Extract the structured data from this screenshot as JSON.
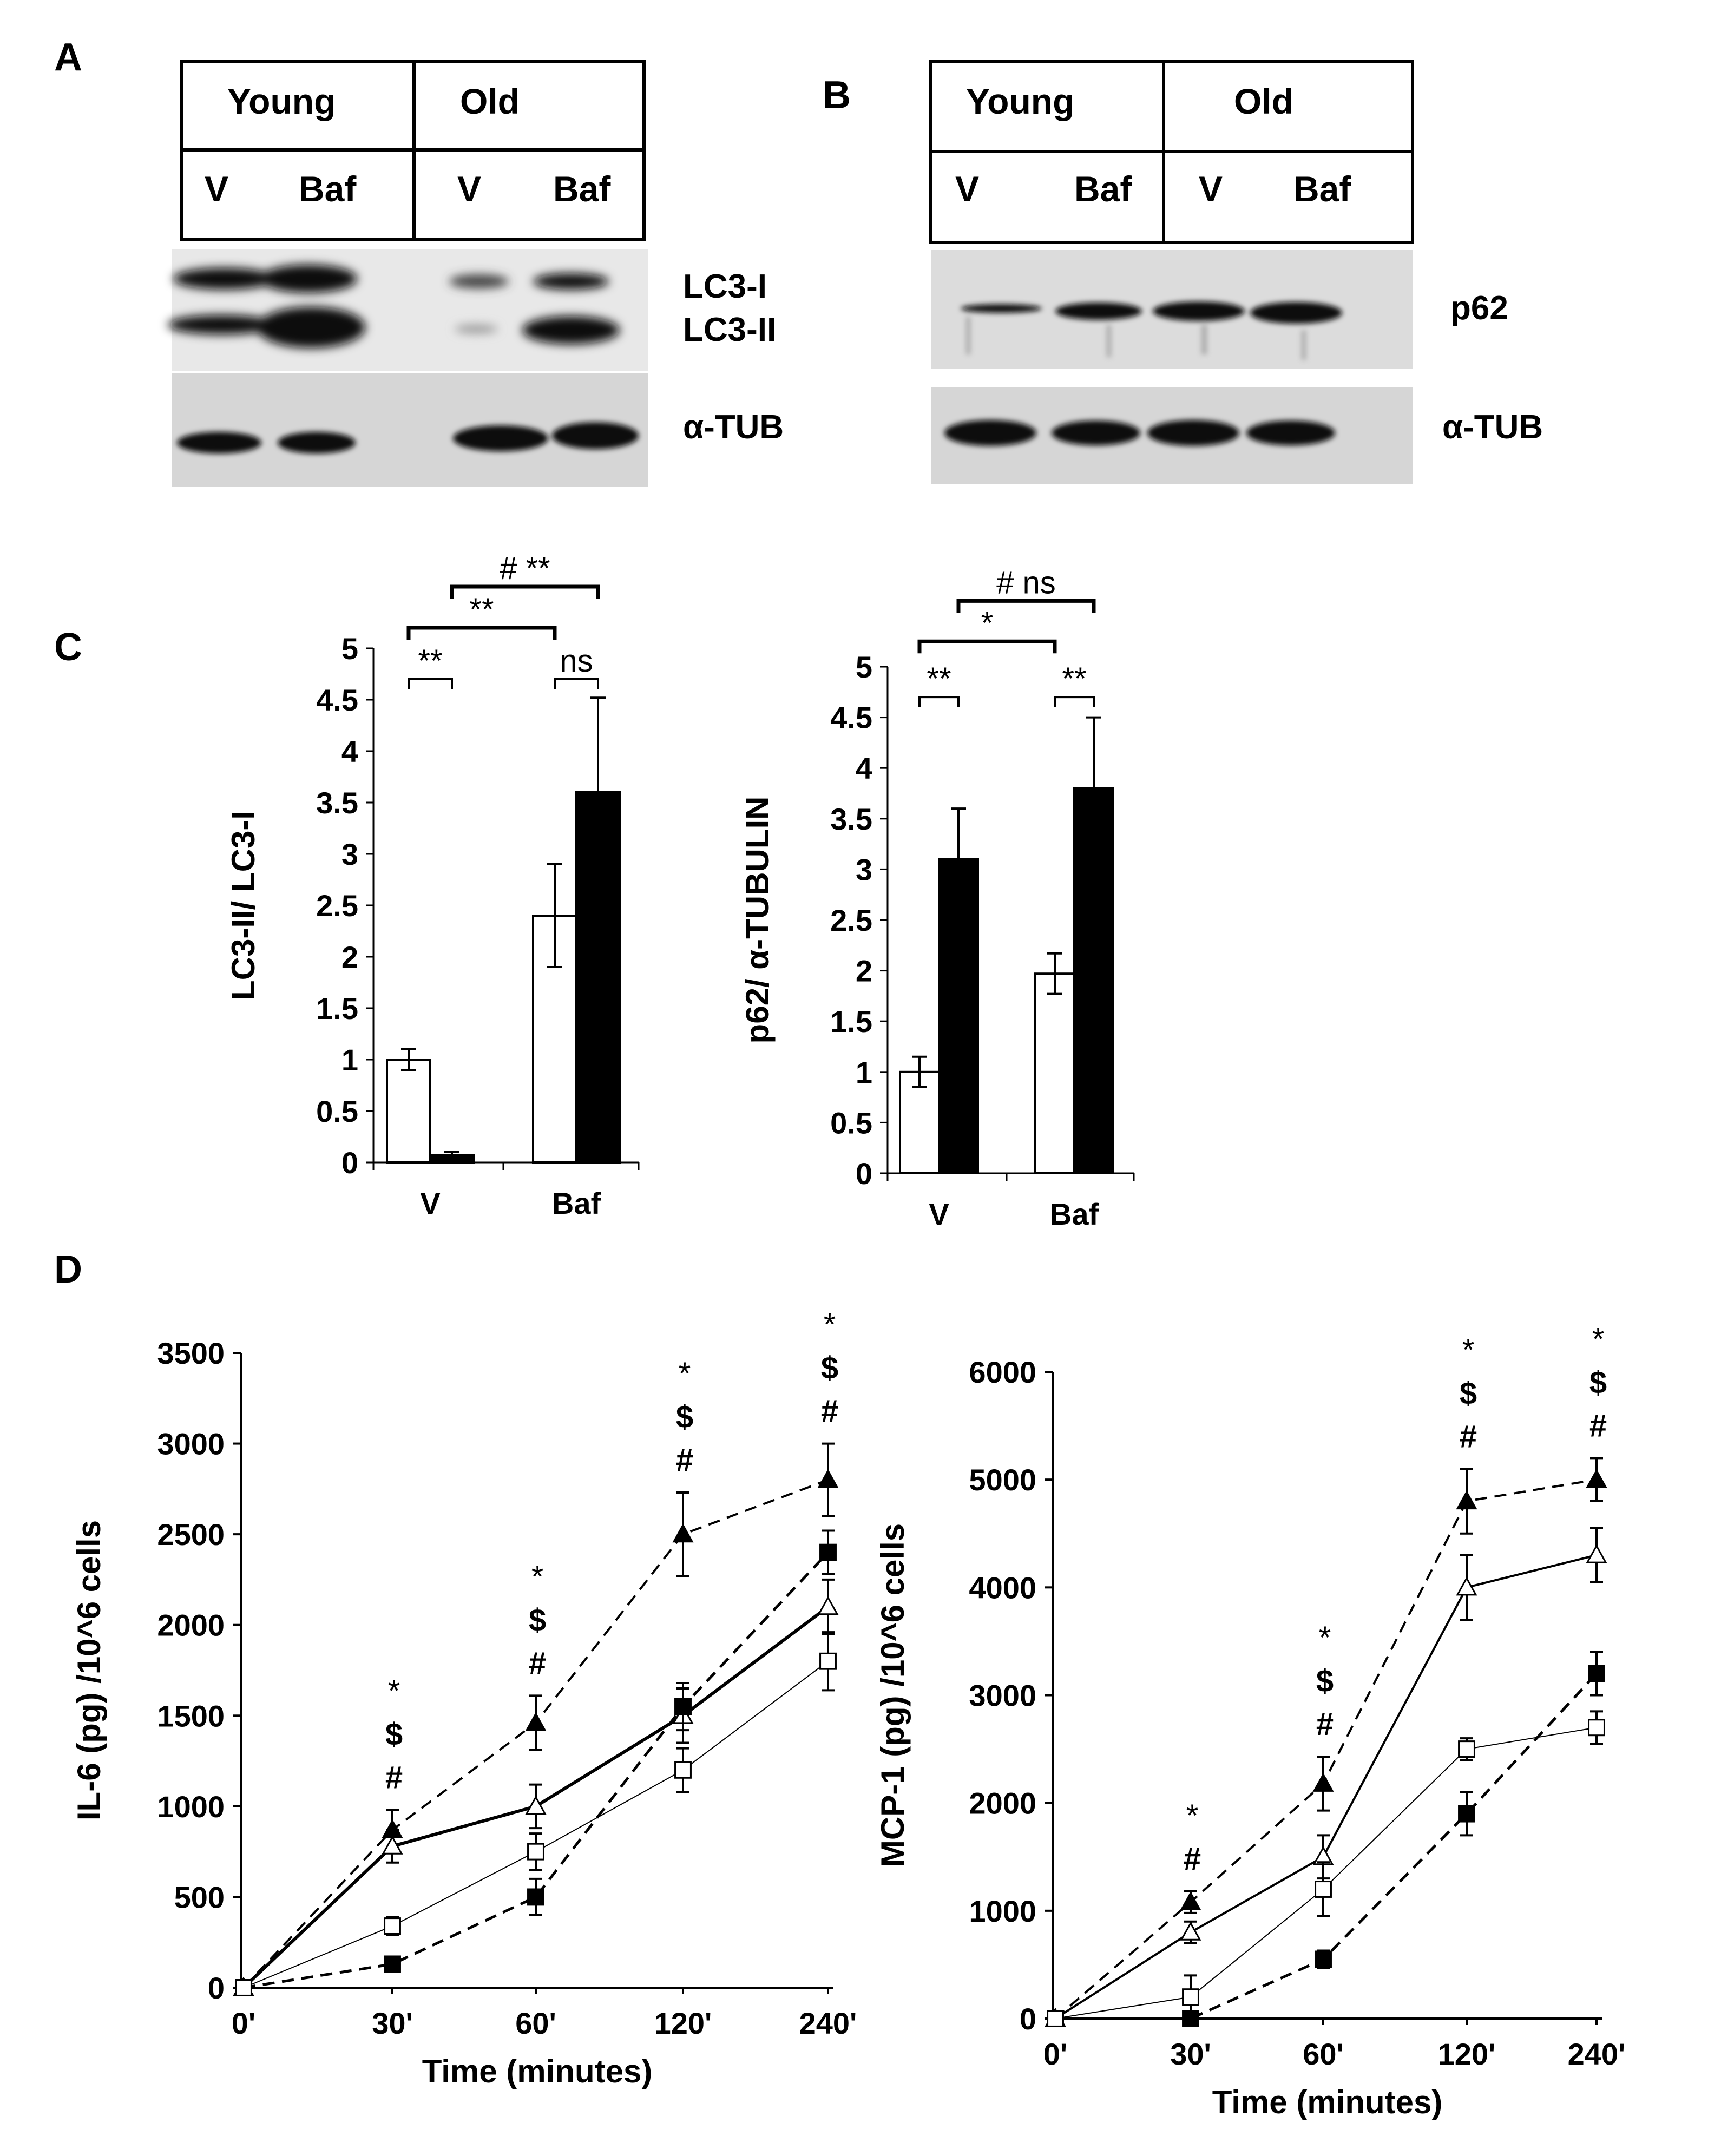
{
  "panels": {
    "A": {
      "letter": "A",
      "groups": [
        "Young",
        "Old"
      ],
      "lanes": [
        "V",
        "Baf",
        "V",
        "Baf"
      ],
      "blot_labels": [
        "LC3-I",
        "LC3-II",
        "α-TUB"
      ]
    },
    "B": {
      "letter": "B",
      "groups": [
        "Young",
        "Old"
      ],
      "lanes": [
        "V",
        "Baf",
        "V",
        "Baf"
      ],
      "blot_labels": [
        "p62",
        "α-TUB"
      ]
    },
    "C": {
      "letter": "C"
    },
    "D": {
      "letter": "D"
    }
  },
  "colors": {
    "young": "#ffffff",
    "old": "#000000",
    "outline": "#000000",
    "blot_bg": "#d9d9d9",
    "band": "#151515"
  },
  "chart_data": [
    {
      "id": "C-left",
      "type": "bar",
      "categories": [
        "V",
        "Baf"
      ],
      "ylabel": "LC3-II/ LC3-I",
      "ylim": [
        0,
        5
      ],
      "yticks": [
        "0",
        "0.5",
        "1",
        "1.5",
        "2",
        "2.5",
        "3",
        "3.5",
        "4",
        "4.5",
        "5"
      ],
      "series": [
        {
          "values": [
            1.0,
            2.4
          ],
          "errors": [
            0.1,
            0.5
          ],
          "fill": "#ffffff"
        },
        {
          "values": [
            0.07,
            3.6
          ],
          "errors": [
            0.03,
            0.92
          ],
          "fill": "#000000"
        }
      ],
      "brackets": [
        {
          "label": "**",
          "from": "V-young",
          "to": "V-old",
          "level": 4.7
        },
        {
          "label": "ns",
          "from": "Baf-young",
          "to": "Baf-old",
          "level": 4.7
        },
        {
          "label": "**",
          "from": "V-young",
          "to": "Baf-young",
          "level": 5.2
        },
        {
          "label": "# **",
          "from": "V-old",
          "to": "Baf-old",
          "level": 5.6
        }
      ]
    },
    {
      "id": "C-right",
      "type": "bar",
      "categories": [
        "V",
        "Baf"
      ],
      "ylabel": "p62/ α-TUBULIN",
      "ylim": [
        0,
        5
      ],
      "yticks": [
        "0",
        "0.5",
        "1",
        "1.5",
        "2",
        "2.5",
        "3",
        "3.5",
        "4",
        "4.5",
        "5"
      ],
      "series": [
        {
          "values": [
            1.0,
            1.97
          ],
          "errors": [
            0.15,
            0.2
          ],
          "fill": "#ffffff"
        },
        {
          "values": [
            3.1,
            3.8
          ],
          "errors": [
            0.5,
            0.7
          ],
          "fill": "#000000"
        }
      ],
      "brackets": [
        {
          "label": "**",
          "from": "V-young",
          "to": "V-old",
          "level": 4.7
        },
        {
          "label": "**",
          "from": "Baf-young",
          "to": "Baf-old",
          "level": 4.7
        },
        {
          "label": "*",
          "from": "V-young",
          "to": "Baf-young",
          "level": 5.25
        },
        {
          "label": "# ns",
          "from": "V-old",
          "to": "Baf-old",
          "level": 5.65
        }
      ]
    },
    {
      "id": "D-left",
      "type": "line",
      "x": [
        "0'",
        "30'",
        "60'",
        "120'",
        "240'"
      ],
      "xlabel": "Time (minutes)",
      "ylabel": "IL-6 (pg) /10^6 cells",
      "ylim": [
        0,
        3500
      ],
      "yticks": [
        "0",
        "500",
        "1000",
        "1500",
        "2000",
        "2500",
        "3000",
        "3500"
      ],
      "series": [
        {
          "marker": "filled-triangle",
          "dash": true,
          "stroke": 4,
          "values": [
            0,
            870,
            1460,
            2500,
            2800
          ],
          "errors": [
            0,
            110,
            150,
            230,
            200
          ]
        },
        {
          "marker": "open-triangle",
          "dash": false,
          "stroke": 6,
          "values": [
            0,
            780,
            1000,
            1500,
            2100
          ],
          "errors": [
            0,
            90,
            120,
            150,
            150
          ]
        },
        {
          "marker": "filled-square",
          "dash": true,
          "stroke": 5,
          "values": [
            0,
            130,
            500,
            1550,
            2400
          ],
          "errors": [
            0,
            30,
            100,
            130,
            120
          ]
        },
        {
          "marker": "open-square",
          "dash": false,
          "stroke": 2,
          "values": [
            0,
            340,
            750,
            1200,
            1800
          ],
          "errors": [
            0,
            50,
            100,
            120,
            160
          ]
        }
      ],
      "annotations": [
        {
          "x": "30'",
          "labels": [
            "*",
            "$",
            "#"
          ]
        },
        {
          "x": "60'",
          "labels": [
            "*",
            "$",
            "#"
          ]
        },
        {
          "x": "120'",
          "labels": [
            "*",
            "$",
            "#"
          ]
        },
        {
          "x": "240'",
          "labels": [
            "*",
            "$",
            "#"
          ]
        }
      ]
    },
    {
      "id": "D-right",
      "type": "line",
      "x": [
        "0'",
        "30'",
        "60'",
        "120'",
        "240'"
      ],
      "xlabel": "Time (minutes)",
      "ylabel": "MCP-1 (pg) /10^6 cells",
      "ylim": [
        0,
        6000
      ],
      "yticks": [
        "0",
        "1000",
        "2000",
        "3000",
        "4000",
        "5000",
        "6000"
      ],
      "series": [
        {
          "marker": "filled-triangle",
          "dash": true,
          "stroke": 4,
          "values": [
            0,
            1080,
            2180,
            4800,
            5000
          ],
          "errors": [
            0,
            100,
            250,
            300,
            200
          ]
        },
        {
          "marker": "open-triangle",
          "dash": false,
          "stroke": 4,
          "values": [
            0,
            800,
            1500,
            4000,
            4300
          ],
          "errors": [
            0,
            100,
            200,
            300,
            250
          ]
        },
        {
          "marker": "filled-square",
          "dash": true,
          "stroke": 5,
          "values": [
            0,
            0,
            550,
            1900,
            3200
          ],
          "errors": [
            0,
            0,
            80,
            200,
            200
          ]
        },
        {
          "marker": "open-square",
          "dash": false,
          "stroke": 2,
          "values": [
            0,
            200,
            1200,
            2500,
            2700
          ],
          "errors": [
            0,
            200,
            250,
            100,
            150
          ]
        }
      ],
      "annotations": [
        {
          "x": "30'",
          "labels": [
            "*",
            "#"
          ]
        },
        {
          "x": "60'",
          "labels": [
            "*",
            "$",
            "#"
          ]
        },
        {
          "x": "120'",
          "labels": [
            "*",
            "$",
            "#"
          ]
        },
        {
          "x": "240'",
          "labels": [
            "*",
            "$",
            "#"
          ]
        }
      ]
    }
  ]
}
